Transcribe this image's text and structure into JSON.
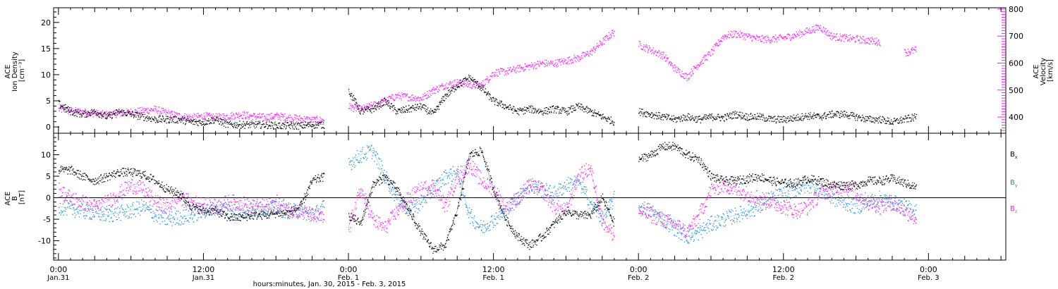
{
  "colors": {
    "black": "#000000",
    "blue": "#1a8fe0",
    "magenta": "#ff1aff"
  },
  "x_axis": {
    "ticks": [
      {
        "hours": 24,
        "time": "0:00",
        "date": "Jan.31"
      },
      {
        "hours": 36,
        "time": "12:00",
        "date": "Jan.31"
      },
      {
        "hours": 48,
        "time": "0:00",
        "date": "Feb. 1"
      },
      {
        "hours": 60,
        "time": "12:00",
        "date": "Feb. 1"
      },
      {
        "hours": 72,
        "time": "0:00",
        "date": "Feb. 2"
      },
      {
        "hours": 84,
        "time": "12:00",
        "date": "Feb. 2"
      },
      {
        "hours": 96,
        "time": "0:00",
        "date": "Feb. 3"
      }
    ],
    "title": "hours:minutes, Jan. 30, 2015 - Feb.  3, 2015"
  },
  "chart_data": [
    {
      "type": "scatter",
      "title": "",
      "xlabel": "hours:minutes, Jan. 30, 2015 - Feb.  3, 2015",
      "xlim": [
        23.6,
        102.4
      ],
      "left_axis": {
        "label_lines": [
          "ACE",
          "Ion Density",
          "[cm⁻³]"
        ],
        "ylim": [
          -1.2,
          22.8
        ],
        "ticks": [
          0,
          5,
          10,
          15,
          20
        ]
      },
      "right_axis": {
        "label_lines": [
          "ACE",
          "Velocity",
          "[km/s]"
        ],
        "ylim": [
          340,
          805
        ],
        "ticks": [
          400,
          500,
          600,
          700,
          800
        ]
      },
      "series": [
        {
          "axis": "left",
          "color": "#000000",
          "x": [
            24,
            25,
            26,
            27,
            28,
            29,
            30,
            31,
            32,
            33,
            34,
            35,
            36,
            37,
            38,
            39,
            40,
            41,
            42,
            43,
            44,
            45,
            46,
            47,
            48,
            49,
            50,
            51,
            52,
            53,
            54,
            55,
            56,
            57,
            58,
            59,
            60,
            61,
            62,
            63,
            64,
            65,
            66,
            67,
            68,
            69,
            70,
            71,
            72,
            73,
            74,
            75,
            76,
            77,
            78,
            79,
            80,
            81,
            82,
            83,
            84,
            85,
            86,
            87,
            88,
            89,
            90,
            91,
            92,
            93,
            94,
            95
          ],
          "y": [
            4.5,
            3,
            2.5,
            3,
            2,
            3,
            2.5,
            2,
            1.5,
            1.5,
            1.5,
            1,
            1,
            1.5,
            0.5,
            0.5,
            0.5,
            0.5,
            0.3,
            0.3,
            0.3,
            0.5,
            0.5,
            null,
            7,
            3,
            3.5,
            5,
            3,
            3.5,
            4,
            2.5,
            6,
            8,
            9.5,
            7.5,
            5,
            4,
            3,
            3.5,
            3,
            3.5,
            3,
            4,
            3,
            2,
            1,
            null,
            3,
            2.5,
            2,
            1.5,
            2,
            1.5,
            2,
            1.8,
            2.5,
            2,
            2,
            1.5,
            1.5,
            1.8,
            2.2,
            2,
            2.5,
            2.5,
            2,
            1.5,
            1.5,
            1,
            1.5,
            2
          ]
        },
        {
          "axis": "right",
          "color": "#ff1aff",
          "x": [
            24,
            25,
            26,
            27,
            28,
            29,
            30,
            31,
            32,
            33,
            34,
            35,
            36,
            37,
            38,
            39,
            40,
            41,
            42,
            43,
            44,
            45,
            46,
            47,
            48,
            49,
            50,
            51,
            52,
            53,
            54,
            55,
            56,
            57,
            58,
            59,
            60,
            61,
            62,
            63,
            64,
            65,
            66,
            67,
            68,
            69,
            70,
            71,
            72,
            73,
            74,
            75,
            76,
            77,
            78,
            79,
            80,
            81,
            82,
            83,
            84,
            85,
            86,
            87,
            88,
            89,
            90,
            91,
            92,
            93,
            94,
            95
          ],
          "y": [
            430,
            425,
            420,
            415,
            410,
            415,
            420,
            425,
            430,
            415,
            405,
            400,
            405,
            400,
            405,
            410,
            405,
            400,
            405,
            400,
            395,
            390,
            390,
            null,
            440,
            430,
            445,
            460,
            480,
            475,
            470,
            500,
            520,
            530,
            520,
            520,
            565,
            570,
            580,
            590,
            600,
            600,
            610,
            620,
            640,
            680,
            720,
            null,
            670,
            650,
            630,
            580,
            550,
            600,
            640,
            700,
            710,
            700,
            690,
            690,
            695,
            705,
            720,
            735,
            700,
            695,
            690,
            685,
            680,
            null,
            640,
            650
          ]
        }
      ]
    },
    {
      "type": "scatter",
      "title": "",
      "xlabel": "hours:minutes, Jan. 30, 2015 - Feb.  3, 2015",
      "xlim": [
        23.6,
        102.4
      ],
      "left_axis": {
        "label_lines": [
          "ACE",
          "B",
          "[nT]"
        ],
        "ylim": [
          -14.5,
          15
        ],
        "ticks": [
          -10,
          -5,
          0,
          5,
          10
        ]
      },
      "legend": {
        "position": "right",
        "entries": [
          {
            "base": "B",
            "sub": "x",
            "color": "#000000"
          },
          {
            "base": "B",
            "sub": "y",
            "color": "#1a8fe0"
          },
          {
            "base": "B",
            "sub": "z",
            "color": "#ff1aff"
          }
        ]
      },
      "zero_line": true,
      "series": [
        {
          "name": "Bx",
          "color": "#000000",
          "x": [
            24,
            25,
            26,
            27,
            28,
            29,
            30,
            31,
            32,
            33,
            34,
            35,
            36,
            37,
            38,
            39,
            40,
            41,
            42,
            43,
            44,
            45,
            46,
            47,
            48,
            49,
            50,
            51,
            52,
            53,
            54,
            55,
            56,
            57,
            58,
            59,
            60,
            61,
            62,
            63,
            64,
            65,
            66,
            67,
            68,
            69,
            70,
            71,
            72,
            73,
            74,
            75,
            76,
            77,
            78,
            79,
            80,
            81,
            82,
            83,
            84,
            85,
            86,
            87,
            88,
            89,
            90,
            91,
            92,
            93,
            94,
            95
          ],
          "y": [
            6.5,
            6.5,
            5,
            4,
            5,
            6,
            6,
            5.5,
            4,
            2,
            1,
            -2,
            -3,
            -3,
            -4.5,
            -4.5,
            -4,
            -4,
            -3.5,
            -3.5,
            -2,
            4,
            5,
            null,
            -4,
            -6,
            3,
            5,
            2,
            -3,
            -8,
            -12,
            -11,
            -3,
            10,
            11,
            2,
            -5,
            -9,
            -11,
            -9,
            -6,
            -3,
            -4,
            -4,
            0,
            -6,
            null,
            9,
            10,
            12,
            12,
            10,
            9,
            5,
            4,
            4,
            4.5,
            5,
            4,
            3.5,
            3.5,
            4.5,
            4,
            3,
            3,
            3,
            4,
            4,
            4.5,
            3.5,
            2.5
          ]
        },
        {
          "name": "By",
          "color": "#1a8fe0",
          "x": [
            24,
            25,
            26,
            27,
            28,
            29,
            30,
            31,
            32,
            33,
            34,
            35,
            36,
            37,
            38,
            39,
            40,
            41,
            42,
            43,
            44,
            45,
            46,
            47,
            48,
            49,
            50,
            51,
            52,
            53,
            54,
            55,
            56,
            57,
            58,
            59,
            60,
            61,
            62,
            63,
            64,
            65,
            66,
            67,
            68,
            69,
            70,
            71,
            72,
            73,
            74,
            75,
            76,
            77,
            78,
            79,
            80,
            81,
            82,
            83,
            84,
            85,
            86,
            87,
            88,
            89,
            90,
            91,
            92,
            93,
            94,
            95
          ],
          "y": [
            -2,
            -2.5,
            -3,
            -3.5,
            -4,
            -3.5,
            -3,
            -2,
            -4,
            -5,
            -4.5,
            -4,
            -3,
            -2,
            -2.5,
            -3,
            -3,
            -2,
            -2.5,
            -3,
            -3,
            -4,
            -2,
            null,
            8,
            10,
            11,
            5,
            0,
            -3,
            -1,
            2,
            5,
            6,
            -4,
            -7,
            -5,
            -3,
            0,
            3,
            2,
            1,
            3,
            4,
            -1,
            -5,
            0,
            null,
            -2,
            -3,
            -5,
            -7,
            -9,
            -8,
            -6,
            -5,
            -4,
            -3,
            -2,
            0,
            1,
            2,
            3,
            2,
            0,
            -1,
            -2,
            -1,
            0,
            -1,
            -2,
            -3
          ]
        },
        {
          "name": "Bz",
          "color": "#ff1aff",
          "x": [
            24,
            25,
            26,
            27,
            28,
            29,
            30,
            31,
            32,
            33,
            34,
            35,
            36,
            37,
            38,
            39,
            40,
            41,
            42,
            43,
            44,
            45,
            46,
            47,
            48,
            49,
            50,
            51,
            52,
            53,
            54,
            55,
            56,
            57,
            58,
            59,
            60,
            61,
            62,
            63,
            64,
            65,
            66,
            67,
            68,
            69,
            70,
            71,
            72,
            73,
            74,
            75,
            76,
            77,
            78,
            79,
            80,
            81,
            82,
            83,
            84,
            85,
            86,
            87,
            88,
            89,
            90,
            91,
            92,
            93,
            94,
            95
          ],
          "y": [
            2,
            0,
            -1,
            -2,
            -1,
            1,
            3,
            2,
            -1,
            -2,
            0,
            -1,
            -1.5,
            -2,
            -1,
            -1,
            -2,
            -2,
            -1,
            -2.5,
            -3,
            -4,
            -5,
            null,
            -7,
            2,
            -5,
            -7,
            -3,
            0,
            2,
            3,
            -2,
            5,
            8,
            4,
            2,
            -2,
            0,
            3,
            2,
            -2,
            -3,
            5,
            7,
            -5,
            -9,
            null,
            -3,
            -4,
            -5,
            -6,
            -8,
            -4,
            2,
            3,
            2,
            1,
            0,
            -1,
            -2,
            -3,
            -2,
            1,
            2,
            3,
            1,
            -1,
            -2,
            -1,
            -3,
            -5
          ]
        }
      ]
    }
  ]
}
